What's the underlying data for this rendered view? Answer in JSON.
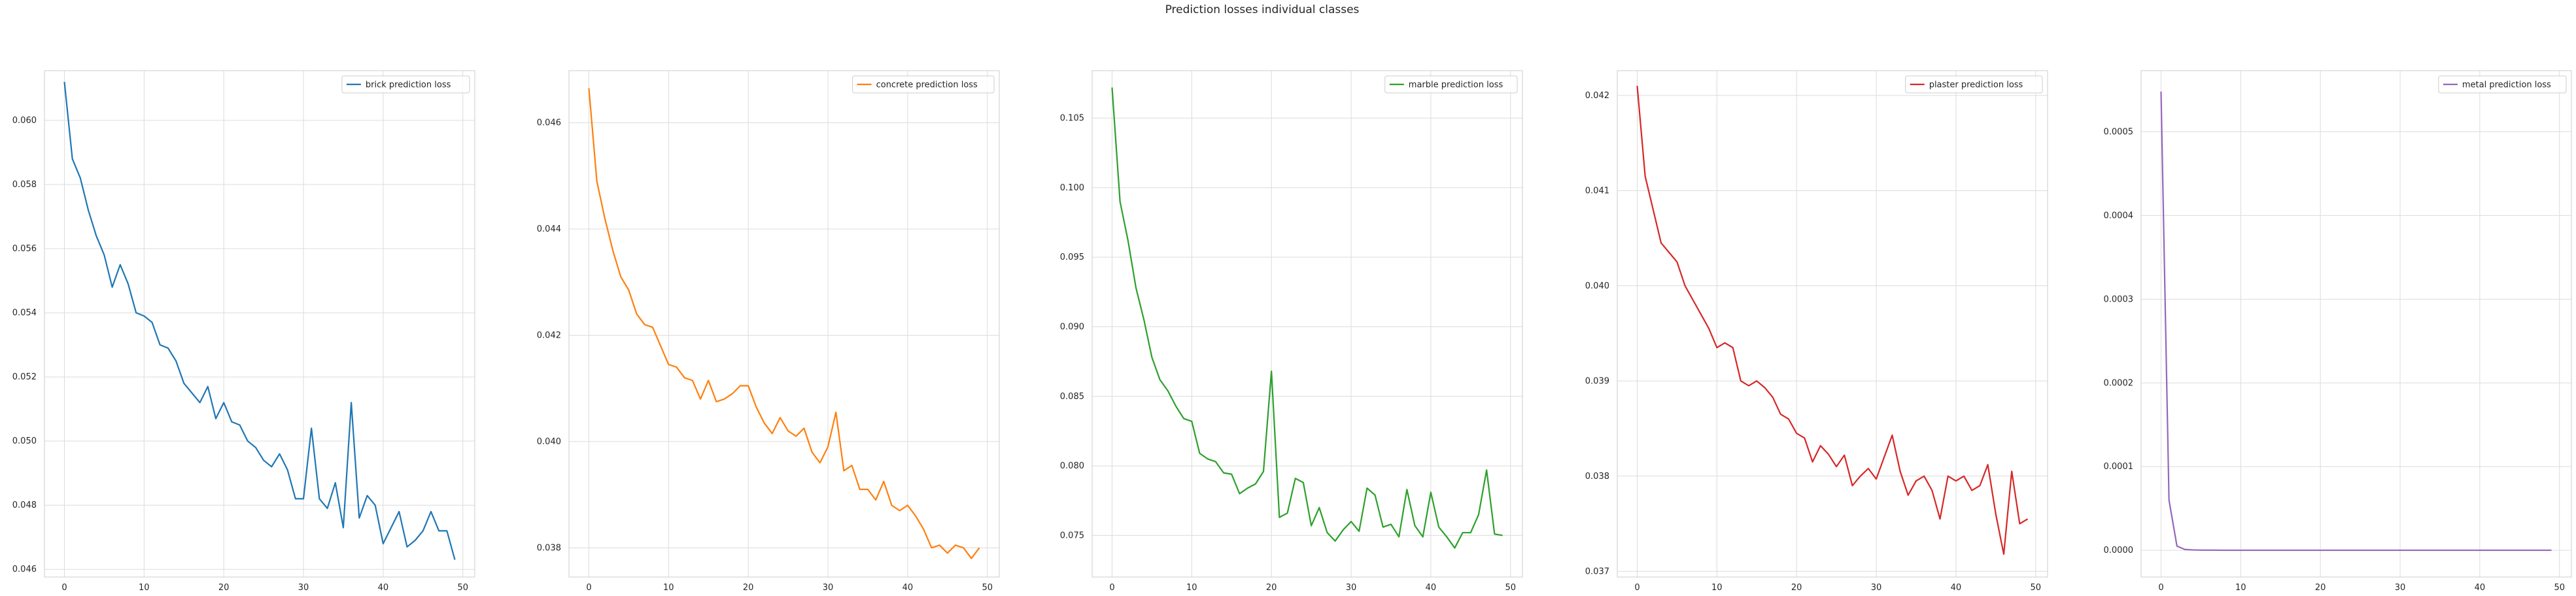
{
  "figure": {
    "title": "Prediction losses individual classes"
  },
  "chart_data": [
    {
      "type": "line",
      "grid": true,
      "legend_position": "top-right",
      "xlim": [
        -2.5,
        51.5
      ],
      "ylim": [
        0.04576,
        0.06155
      ],
      "xticks": [
        0,
        10,
        20,
        30,
        40,
        50
      ],
      "yticks": [
        0.046,
        0.048,
        0.05,
        0.052,
        0.054,
        0.056,
        0.058,
        0.06
      ],
      "yticklabels": [
        "0.046",
        "0.048",
        "0.050",
        "0.052",
        "0.054",
        "0.056",
        "0.058",
        "0.060"
      ],
      "series": [
        {
          "name": "brick prediction loss",
          "color": "#1f77b4",
          "x": [
            0,
            1,
            2,
            3,
            4,
            5,
            6,
            7,
            8,
            9,
            10,
            11,
            12,
            13,
            14,
            15,
            16,
            17,
            18,
            19,
            20,
            21,
            22,
            23,
            24,
            25,
            26,
            27,
            28,
            29,
            30,
            31,
            32,
            33,
            34,
            35,
            36,
            37,
            38,
            39,
            40,
            41,
            42,
            43,
            44,
            45,
            46,
            47,
            48,
            49
          ],
          "y": [
            0.0612,
            0.0588,
            0.0582,
            0.0572,
            0.0564,
            0.0558,
            0.0548,
            0.0555,
            0.0549,
            0.054,
            0.0539,
            0.0537,
            0.053,
            0.0529,
            0.0525,
            0.0518,
            0.0515,
            0.0512,
            0.0517,
            0.0507,
            0.0512,
            0.0506,
            0.0505,
            0.05,
            0.0498,
            0.0494,
            0.0492,
            0.0496,
            0.0491,
            0.0482,
            0.0482,
            0.0504,
            0.0482,
            0.0479,
            0.0487,
            0.0473,
            0.0512,
            0.0476,
            0.0483,
            0.048,
            0.0468,
            0.0473,
            0.0478,
            0.0467,
            0.0469,
            0.0472,
            0.0478,
            0.0472,
            0.0472,
            0.0463
          ]
        }
      ]
    },
    {
      "type": "line",
      "grid": true,
      "legend_position": "top-right",
      "xlim": [
        -2.5,
        51.5
      ],
      "ylim": [
        0.03745,
        0.04698
      ],
      "xticks": [
        0,
        10,
        20,
        30,
        40,
        50
      ],
      "yticks": [
        0.038,
        0.04,
        0.042,
        0.044,
        0.046
      ],
      "yticklabels": [
        "0.038",
        "0.040",
        "0.042",
        "0.044",
        "0.046"
      ],
      "series": [
        {
          "name": "concrete prediction loss",
          "color": "#ff7f0e",
          "x": [
            0,
            1,
            2,
            3,
            4,
            5,
            6,
            7,
            8,
            9,
            10,
            11,
            12,
            13,
            14,
            15,
            16,
            17,
            18,
            19,
            20,
            21,
            22,
            23,
            24,
            25,
            26,
            27,
            28,
            29,
            30,
            31,
            32,
            33,
            34,
            35,
            36,
            37,
            38,
            39,
            40,
            41,
            42,
            43,
            44,
            45,
            46,
            47,
            48,
            49
          ],
          "y": [
            0.04665,
            0.0449,
            0.0442,
            0.0436,
            0.0431,
            0.04285,
            0.0424,
            0.0422,
            0.04215,
            0.0418,
            0.04145,
            0.0414,
            0.0412,
            0.04115,
            0.0408,
            0.04115,
            0.04075,
            0.0408,
            0.0409,
            0.04105,
            0.04105,
            0.04065,
            0.04035,
            0.04015,
            0.04045,
            0.0402,
            0.0401,
            0.04025,
            0.0398,
            0.0396,
            0.0399,
            0.04055,
            0.03945,
            0.03955,
            0.0391,
            0.0391,
            0.0389,
            0.03925,
            0.0388,
            0.0387,
            0.0388,
            0.0386,
            0.03835,
            0.038,
            0.03805,
            0.0379,
            0.03805,
            0.038,
            0.0378,
            0.038
          ]
        }
      ]
    },
    {
      "type": "line",
      "grid": true,
      "legend_position": "top-right",
      "xlim": [
        -2.5,
        51.5
      ],
      "ylim": [
        0.07201,
        0.10841
      ],
      "xticks": [
        0,
        10,
        20,
        30,
        40,
        50
      ],
      "yticks": [
        0.075,
        0.08,
        0.085,
        0.09,
        0.095,
        0.1,
        0.105
      ],
      "yticklabels": [
        "0.075",
        "0.080",
        "0.085",
        "0.090",
        "0.095",
        "0.100",
        "0.105"
      ],
      "series": [
        {
          "name": "marble prediction loss",
          "color": "#2ca02c",
          "x": [
            0,
            1,
            2,
            3,
            4,
            5,
            6,
            7,
            8,
            9,
            10,
            11,
            12,
            13,
            14,
            15,
            16,
            17,
            18,
            19,
            20,
            21,
            22,
            23,
            24,
            25,
            26,
            27,
            28,
            29,
            30,
            31,
            32,
            33,
            34,
            35,
            36,
            37,
            38,
            39,
            40,
            41,
            42,
            43,
            44,
            45,
            46,
            47,
            48,
            49
          ],
          "y": [
            0.1072,
            0.099,
            0.0962,
            0.0928,
            0.0905,
            0.0878,
            0.0862,
            0.0854,
            0.0843,
            0.0834,
            0.0832,
            0.0809,
            0.0805,
            0.0803,
            0.0795,
            0.0794,
            0.078,
            0.0784,
            0.0787,
            0.0796,
            0.0868,
            0.0763,
            0.0766,
            0.0791,
            0.0788,
            0.0757,
            0.077,
            0.0752,
            0.0746,
            0.0754,
            0.076,
            0.0753,
            0.0784,
            0.0779,
            0.0756,
            0.0758,
            0.0749,
            0.0783,
            0.0757,
            0.0749,
            0.0781,
            0.0756,
            0.0749,
            0.0741,
            0.0752,
            0.0752,
            0.0765,
            0.0797,
            0.0751,
            0.075
          ]
        }
      ]
    },
    {
      "type": "line",
      "grid": true,
      "legend_position": "top-right",
      "xlim": [
        -2.5,
        51.5
      ],
      "ylim": [
        0.03694,
        0.04226
      ],
      "xticks": [
        0,
        10,
        20,
        30,
        40,
        50
      ],
      "yticks": [
        0.037,
        0.038,
        0.039,
        0.04,
        0.041,
        0.042
      ],
      "yticklabels": [
        "0.037",
        "0.038",
        "0.039",
        "0.040",
        "0.041",
        "0.042"
      ],
      "series": [
        {
          "name": "plaster prediction loss",
          "color": "#d62728",
          "x": [
            0,
            1,
            2,
            3,
            4,
            5,
            6,
            7,
            8,
            9,
            10,
            11,
            12,
            13,
            14,
            15,
            16,
            17,
            18,
            19,
            20,
            21,
            22,
            23,
            24,
            25,
            26,
            27,
            28,
            29,
            30,
            31,
            32,
            33,
            34,
            35,
            36,
            37,
            38,
            39,
            40,
            41,
            42,
            43,
            44,
            45,
            46,
            47,
            48,
            49
          ],
          "y": [
            0.0421,
            0.04115,
            0.0408,
            0.04045,
            0.04035,
            0.04025,
            0.04,
            0.03985,
            0.0397,
            0.03955,
            0.03935,
            0.0394,
            0.03935,
            0.039,
            0.03895,
            0.039,
            0.03893,
            0.03883,
            0.03865,
            0.0386,
            0.03845,
            0.0384,
            0.03815,
            0.03832,
            0.03823,
            0.0381,
            0.03822,
            0.0379,
            0.038,
            0.03808,
            0.03797,
            0.0382,
            0.03843,
            0.03805,
            0.0378,
            0.03795,
            0.038,
            0.03785,
            0.03755,
            0.038,
            0.03795,
            0.038,
            0.03785,
            0.0379,
            0.03812,
            0.0376,
            0.03718,
            0.03805,
            0.0375,
            0.03755
          ]
        }
      ]
    },
    {
      "type": "line",
      "grid": true,
      "legend_position": "top-right",
      "xlim": [
        -2.5,
        51.5
      ],
      "ylim": [
        -3.19e-05,
        0.000573
      ],
      "xticks": [
        0,
        10,
        20,
        30,
        40,
        50
      ],
      "yticks": [
        0.0,
        0.0001,
        0.0002,
        0.0003,
        0.0004,
        0.0005
      ],
      "yticklabels": [
        "0.0000",
        "0.0001",
        "0.0002",
        "0.0003",
        "0.0004",
        "0.0005"
      ],
      "series": [
        {
          "name": "metal prediction loss",
          "color": "#9467bd",
          "x": [
            0,
            1,
            2,
            3,
            4,
            5,
            6,
            7,
            8,
            9,
            10,
            11,
            12,
            13,
            14,
            15,
            16,
            17,
            18,
            19,
            20,
            21,
            22,
            23,
            24,
            25,
            26,
            27,
            28,
            29,
            30,
            31,
            32,
            33,
            34,
            35,
            36,
            37,
            38,
            39,
            40,
            41,
            42,
            43,
            44,
            45,
            46,
            47,
            48,
            49
          ],
          "y": [
            0.000548,
            6e-05,
            5e-06,
            1e-06,
            5e-07,
            3e-07,
            2e-07,
            2e-07,
            1e-07,
            1e-07,
            1e-07,
            1e-07,
            1e-07,
            1e-07,
            1e-07,
            1e-07,
            1e-07,
            1e-07,
            1e-07,
            1e-07,
            1e-07,
            1e-07,
            1e-07,
            1e-07,
            1e-07,
            1e-07,
            1e-07,
            1e-07,
            1e-07,
            1e-07,
            1e-07,
            1e-07,
            1e-07,
            1e-07,
            1e-07,
            1e-07,
            1e-07,
            1e-07,
            1e-07,
            1e-07,
            1e-07,
            1e-07,
            1e-07,
            1e-07,
            1e-07,
            1e-07,
            1e-07,
            1e-07,
            1e-07,
            1e-07
          ]
        }
      ]
    }
  ]
}
